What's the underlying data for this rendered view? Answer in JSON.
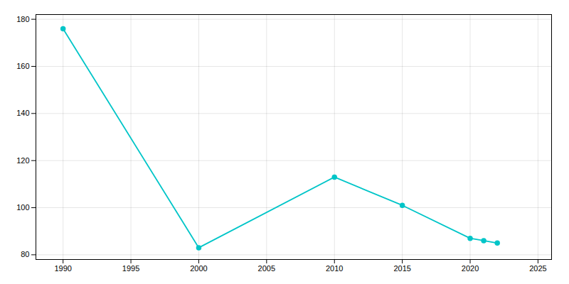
{
  "chart_data": {
    "type": "line",
    "x": [
      1990,
      2000,
      2010,
      2015,
      2020,
      2021,
      2022
    ],
    "values": [
      176,
      83,
      113,
      101,
      87,
      86,
      85
    ],
    "color": "#00C5C8",
    "marker": "circle",
    "xlim": [
      1988,
      2026
    ],
    "ylim": [
      78,
      182
    ],
    "xticks": [
      1990,
      1995,
      2000,
      2005,
      2010,
      2015,
      2020,
      2025
    ],
    "yticks": [
      80,
      100,
      120,
      140,
      160,
      180
    ],
    "grid": true
  }
}
